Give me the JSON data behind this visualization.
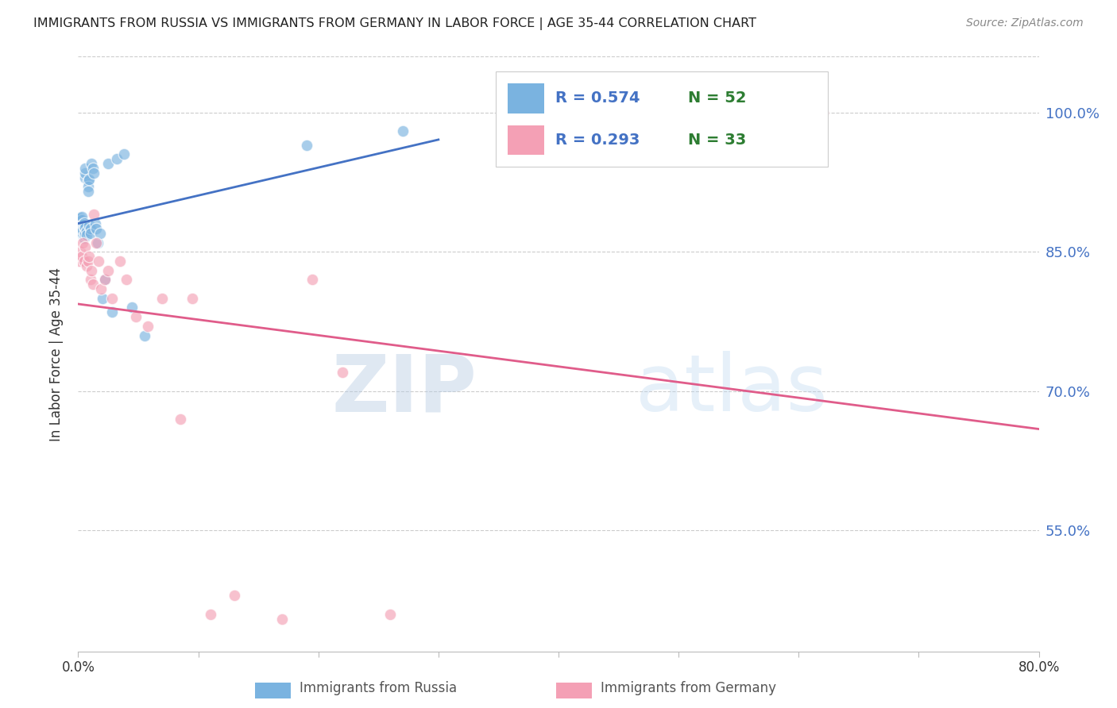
{
  "title": "IMMIGRANTS FROM RUSSIA VS IMMIGRANTS FROM GERMANY IN LABOR FORCE | AGE 35-44 CORRELATION CHART",
  "source": "Source: ZipAtlas.com",
  "ylabel": "In Labor Force | Age 35-44",
  "xlim": [
    0.0,
    0.8
  ],
  "ylim": [
    0.42,
    1.06
  ],
  "yticks": [
    0.55,
    0.7,
    0.85,
    1.0
  ],
  "ytick_labels": [
    "55.0%",
    "70.0%",
    "85.0%",
    "100.0%"
  ],
  "xticks": [
    0.0,
    0.1,
    0.2,
    0.3,
    0.4,
    0.5,
    0.6,
    0.7,
    0.8
  ],
  "xtick_labels": [
    "0.0%",
    "",
    "",
    "",
    "",
    "",
    "",
    "",
    "80.0%"
  ],
  "russia_color": "#7ab3e0",
  "germany_color": "#f4a0b5",
  "russia_R": 0.574,
  "russia_N": 52,
  "germany_R": 0.293,
  "germany_N": 33,
  "russia_line_color": "#4472c4",
  "germany_line_color": "#e05c8a",
  "legend_label_russia": "Immigrants from Russia",
  "legend_label_germany": "Immigrants from Germany",
  "watermark_zip": "ZIP",
  "watermark_atlas": "atlas",
  "russia_x": [
    0.001,
    0.001,
    0.001,
    0.002,
    0.002,
    0.002,
    0.002,
    0.002,
    0.003,
    0.003,
    0.003,
    0.003,
    0.003,
    0.004,
    0.004,
    0.004,
    0.004,
    0.005,
    0.005,
    0.005,
    0.005,
    0.006,
    0.006,
    0.006,
    0.006,
    0.006,
    0.007,
    0.007,
    0.008,
    0.008,
    0.008,
    0.009,
    0.009,
    0.01,
    0.01,
    0.011,
    0.012,
    0.013,
    0.014,
    0.015,
    0.016,
    0.018,
    0.02,
    0.022,
    0.025,
    0.028,
    0.032,
    0.038,
    0.045,
    0.055,
    0.19,
    0.27
  ],
  "russia_y": [
    0.88,
    0.885,
    0.882,
    0.878,
    0.883,
    0.887,
    0.87,
    0.875,
    0.88,
    0.876,
    0.884,
    0.888,
    0.871,
    0.879,
    0.875,
    0.869,
    0.873,
    0.877,
    0.881,
    0.865,
    0.868,
    0.93,
    0.935,
    0.94,
    0.876,
    0.87,
    0.872,
    0.868,
    0.926,
    0.92,
    0.915,
    0.928,
    0.878,
    0.875,
    0.87,
    0.945,
    0.94,
    0.935,
    0.88,
    0.875,
    0.86,
    0.87,
    0.8,
    0.82,
    0.945,
    0.785,
    0.95,
    0.955,
    0.79,
    0.76,
    0.965,
    0.98
  ],
  "germany_x": [
    0.001,
    0.002,
    0.003,
    0.004,
    0.005,
    0.006,
    0.007,
    0.008,
    0.009,
    0.01,
    0.011,
    0.012,
    0.013,
    0.015,
    0.017,
    0.019,
    0.022,
    0.025,
    0.028,
    0.035,
    0.04,
    0.048,
    0.058,
    0.07,
    0.085,
    0.095,
    0.11,
    0.13,
    0.17,
    0.195,
    0.22,
    0.26,
    0.62
  ],
  "germany_y": [
    0.84,
    0.85,
    0.845,
    0.86,
    0.84,
    0.855,
    0.835,
    0.84,
    0.845,
    0.82,
    0.83,
    0.815,
    0.89,
    0.86,
    0.84,
    0.81,
    0.82,
    0.83,
    0.8,
    0.84,
    0.82,
    0.78,
    0.77,
    0.8,
    0.67,
    0.8,
    0.46,
    0.48,
    0.455,
    0.82,
    0.72,
    0.46,
    1.0
  ],
  "russia_line_x": [
    0.0,
    0.3
  ],
  "germany_line_x": [
    0.0,
    0.8
  ]
}
